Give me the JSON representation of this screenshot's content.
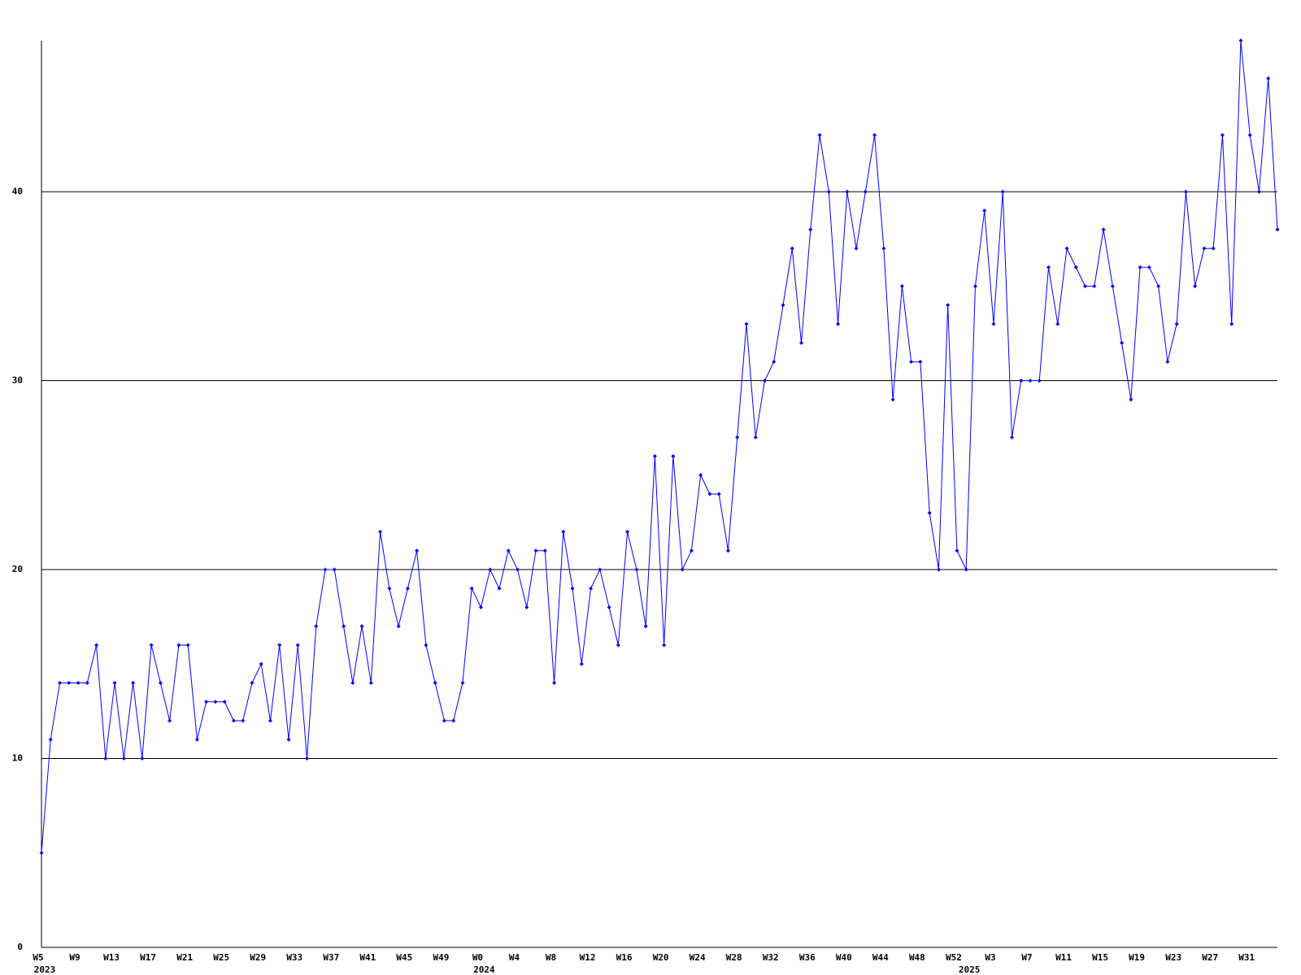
{
  "chart_data": {
    "type": "line",
    "categories": [
      "W5",
      null,
      null,
      null,
      "W9",
      null,
      null,
      null,
      "W13",
      null,
      null,
      null,
      "W17",
      null,
      null,
      null,
      "W21",
      null,
      null,
      null,
      "W25",
      null,
      null,
      null,
      "W29",
      null,
      null,
      null,
      "W33",
      null,
      null,
      null,
      "W37",
      null,
      null,
      null,
      "W41",
      null,
      null,
      null,
      "W45",
      null,
      null,
      null,
      "W49",
      null,
      null,
      null,
      "W0",
      null,
      null,
      null,
      "W4",
      null,
      null,
      null,
      "W8",
      null,
      null,
      null,
      "W12",
      null,
      null,
      null,
      "W16",
      null,
      null,
      null,
      "W20",
      null,
      null,
      null,
      "W24",
      null,
      null,
      null,
      "W28",
      null,
      null,
      null,
      "W32",
      null,
      null,
      null,
      "W36",
      null,
      null,
      null,
      "W40",
      null,
      null,
      null,
      "W44",
      null,
      null,
      null,
      "W48",
      null,
      null,
      null,
      "W52",
      null,
      null,
      null,
      "W3",
      null,
      null,
      null,
      "W7",
      null,
      null,
      null,
      "W11",
      null,
      null,
      null,
      "W15",
      null,
      null,
      null,
      "W19",
      null,
      null,
      null,
      "W23",
      null,
      null,
      null,
      "W27",
      null,
      null,
      null,
      "W31",
      null,
      null,
      null
    ],
    "year_labels": [
      "2023",
      null,
      null,
      null,
      null,
      null,
      null,
      null,
      null,
      null,
      null,
      null,
      null,
      null,
      null,
      null,
      null,
      null,
      null,
      null,
      null,
      null,
      null,
      null,
      null,
      null,
      null,
      null,
      null,
      null,
      null,
      null,
      null,
      null,
      null,
      null,
      null,
      null,
      null,
      null,
      null,
      null,
      null,
      null,
      null,
      null,
      null,
      null,
      "2024",
      null,
      null,
      null,
      null,
      null,
      null,
      null,
      null,
      null,
      null,
      null,
      null,
      null,
      null,
      null,
      null,
      null,
      null,
      null,
      null,
      null,
      null,
      null,
      null,
      null,
      null,
      null,
      null,
      null,
      null,
      null,
      null,
      null,
      null,
      null,
      null,
      null,
      null,
      null,
      null,
      null,
      null,
      null,
      null,
      null,
      null,
      null,
      null,
      null,
      null,
      null,
      null,
      "2025",
      null,
      null,
      null,
      null,
      null,
      null,
      null,
      null,
      null,
      null,
      null,
      null,
      null,
      null,
      null,
      null,
      null,
      null,
      null,
      null,
      null,
      null,
      null,
      null,
      null,
      null,
      null,
      null,
      null,
      null,
      null,
      null,
      null,
      null
    ],
    "series": [
      {
        "color": "#0000ff",
        "values": [
          5,
          11,
          14,
          14,
          14,
          14,
          16,
          10,
          14,
          10,
          14,
          10,
          16,
          14,
          12,
          16,
          16,
          11,
          13,
          13,
          13,
          12,
          12,
          14,
          15,
          12,
          16,
          11,
          16,
          10,
          17,
          20,
          20,
          17,
          14,
          17,
          14,
          22,
          19,
          17,
          19,
          21,
          16,
          14,
          12,
          12,
          14,
          19,
          18,
          20,
          19,
          21,
          20,
          18,
          21,
          21,
          14,
          22,
          19,
          15,
          19,
          20,
          18,
          16,
          22,
          20,
          17,
          26,
          16,
          26,
          20,
          21,
          25,
          24,
          24,
          21,
          27,
          33,
          27,
          30,
          31,
          34,
          37,
          32,
          38,
          43,
          40,
          33,
          40,
          37,
          40,
          43,
          37,
          29,
          35,
          31,
          31,
          23,
          20,
          34,
          21,
          20,
          35,
          39,
          33,
          40,
          27,
          30,
          30,
          30,
          36,
          33,
          37,
          36,
          35,
          35,
          38,
          35,
          32,
          29,
          36,
          36,
          35,
          31,
          33,
          40,
          35,
          37,
          37,
          43,
          33,
          48,
          43,
          40,
          46,
          38
        ]
      }
    ],
    "ylim": [
      0,
      48
    ],
    "yticks": [
      0,
      10,
      20,
      30,
      40
    ],
    "grid": true
  }
}
